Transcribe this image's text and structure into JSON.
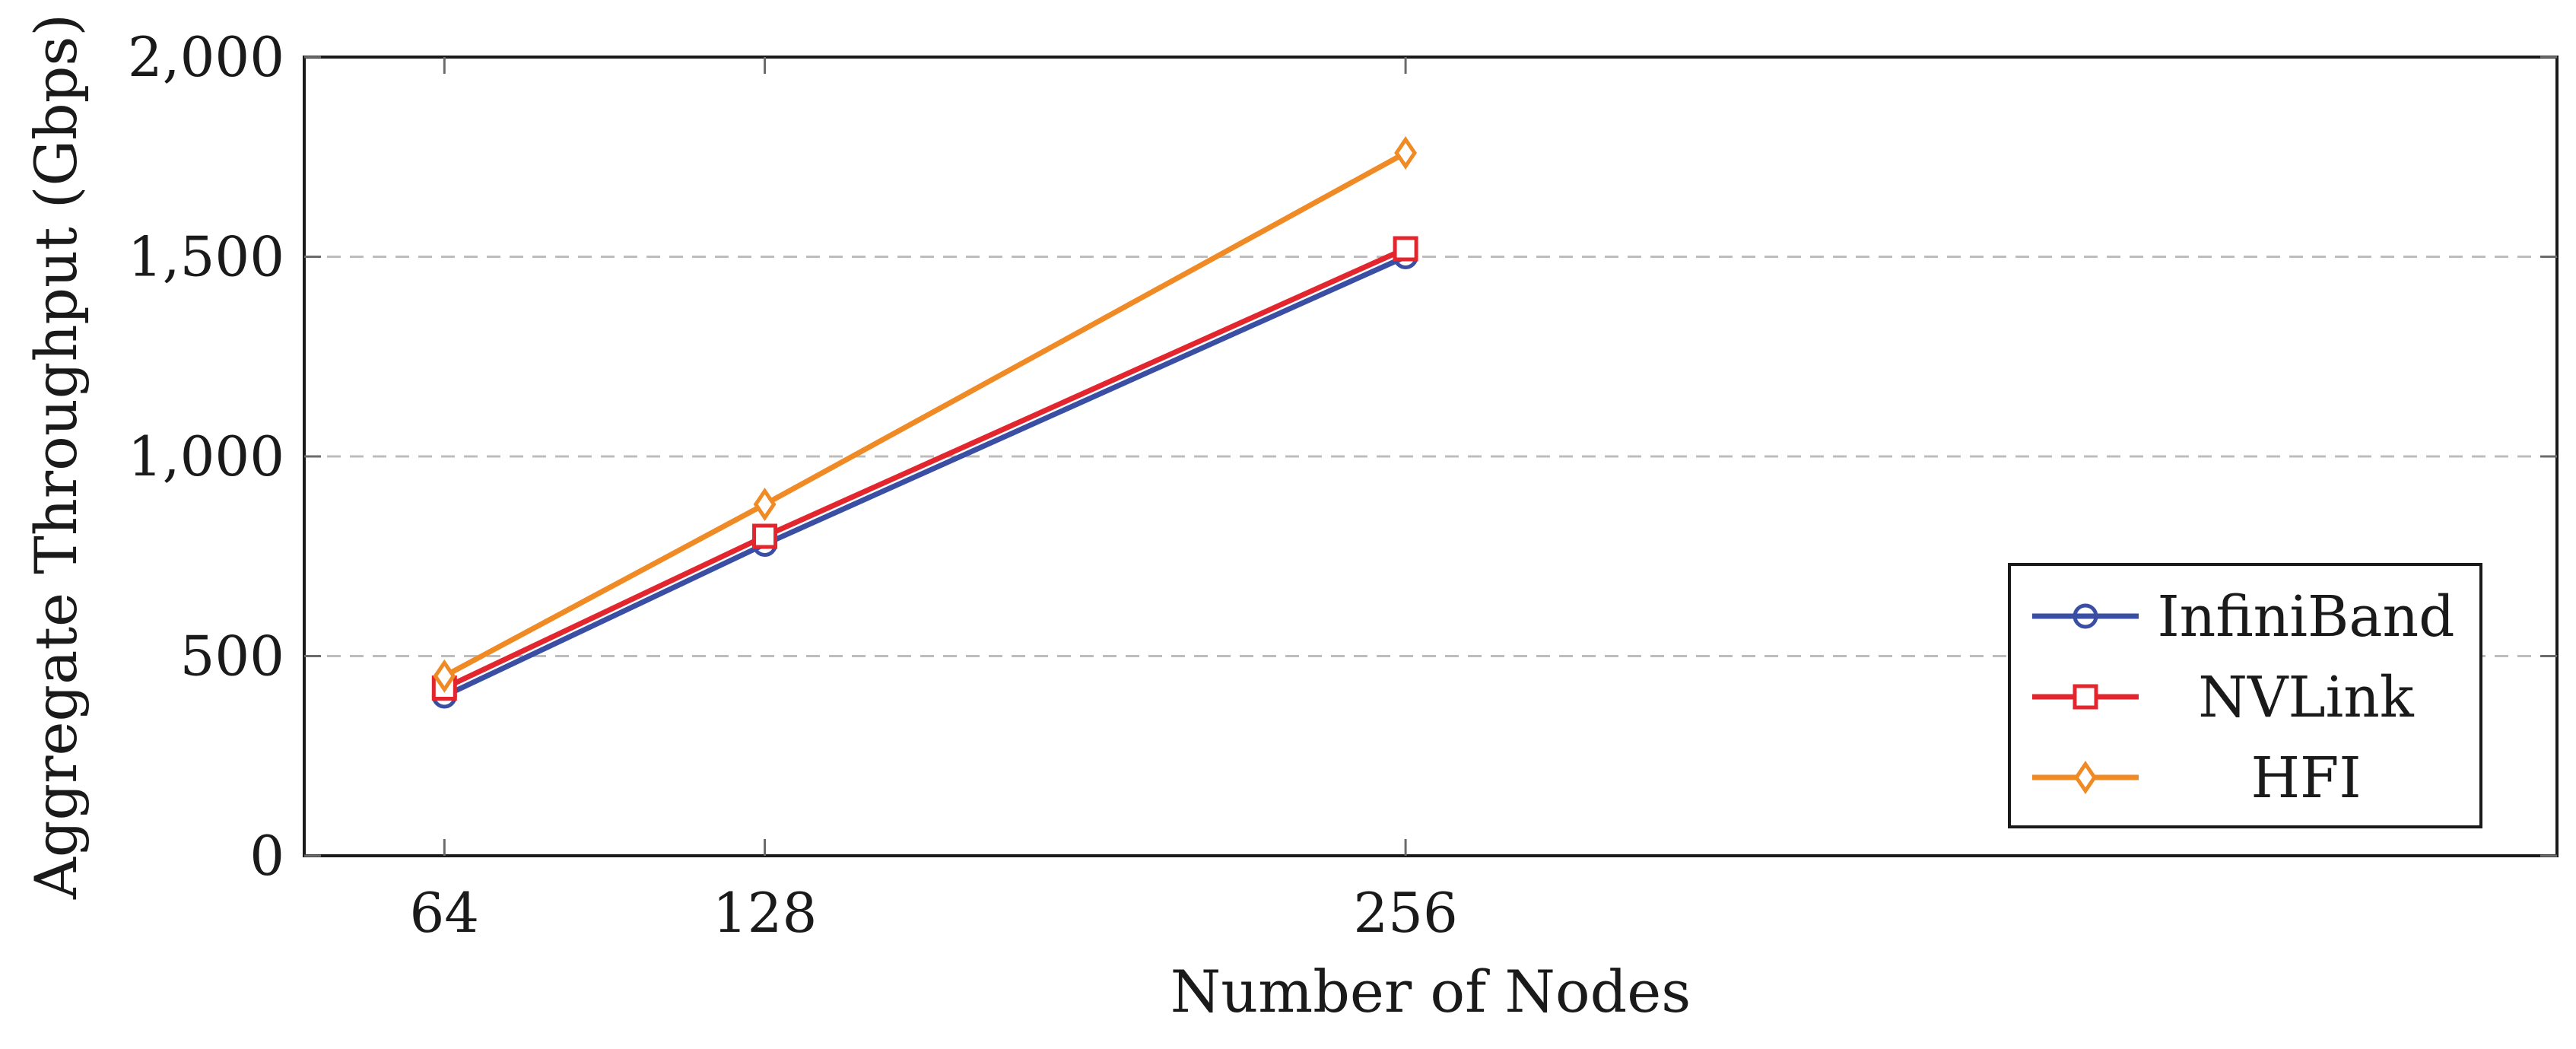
{
  "chart_data": {
    "type": "line",
    "title": "",
    "xlabel": "Number of Nodes",
    "ylabel": "Aggregate Throughput (Gbps)",
    "x": [
      64,
      128,
      256
    ],
    "x_tick_labels": [
      "64",
      "128",
      "256"
    ],
    "xlim": [
      36,
      486
    ],
    "ylim": [
      0,
      2000
    ],
    "y_ticks": [
      0,
      500,
      1000,
      1500,
      2000
    ],
    "y_tick_labels": [
      "0",
      "500",
      "1,000",
      "1,500",
      "2,000"
    ],
    "grid": "horizontal dashed",
    "legend_position": "bottom-right",
    "series": [
      {
        "name": "InfiniBand",
        "values": [
          400,
          780,
          1500
        ],
        "color": "#3a4fa3",
        "marker": "circle"
      },
      {
        "name": "NVLink",
        "values": [
          420,
          800,
          1520
        ],
        "color": "#e3262e",
        "marker": "square"
      },
      {
        "name": "HFI",
        "values": [
          450,
          880,
          1760
        ],
        "color": "#f08a24",
        "marker": "diamond"
      }
    ]
  }
}
